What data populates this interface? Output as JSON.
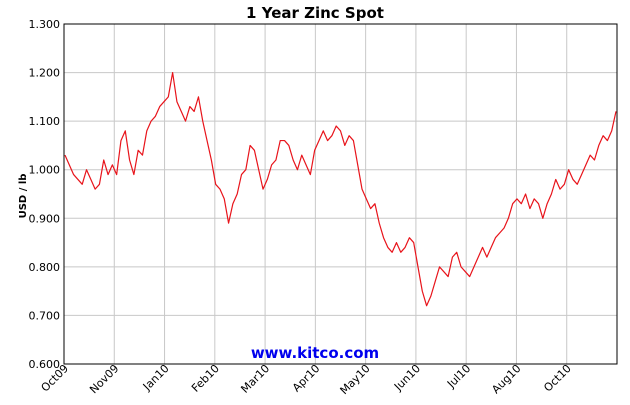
{
  "chart_data": {
    "type": "line",
    "title": "1 Year Zinc Spot",
    "xlabel": "",
    "ylabel": "USD / lb",
    "ylim": [
      0.6,
      1.3
    ],
    "y_ticks": [
      "0.600",
      "0.700",
      "0.800",
      "0.900",
      "1.000",
      "1.100",
      "1.200",
      "1.300"
    ],
    "x_ticks": [
      "Oct09",
      "Nov09",
      "Jan10",
      "Feb10",
      "Mar10",
      "Apr10",
      "May10",
      "Jun10",
      "Jul10",
      "Aug10",
      "Oct10"
    ],
    "grid": true,
    "line_color": "#e8141b",
    "watermark": "www.kitco.com",
    "series": [
      {
        "values": [
          1.03,
          1.01,
          0.99,
          0.98,
          0.97,
          1.0,
          0.98,
          0.96,
          0.97,
          1.02,
          0.99,
          1.01,
          0.99,
          1.06,
          1.08,
          1.02,
          0.99,
          1.04,
          1.03,
          1.08,
          1.1,
          1.11,
          1.13,
          1.14,
          1.15,
          1.2,
          1.14,
          1.12,
          1.1,
          1.13,
          1.12,
          1.15,
          1.1,
          1.06,
          1.02,
          0.97,
          0.96,
          0.94,
          0.89,
          0.93,
          0.95,
          0.99,
          1.0,
          1.05,
          1.04,
          1.0,
          0.96,
          0.98,
          1.01,
          1.02,
          1.06,
          1.06,
          1.05,
          1.02,
          1.0,
          1.03,
          1.01,
          0.99,
          1.04,
          1.06,
          1.08,
          1.06,
          1.07,
          1.09,
          1.08,
          1.05,
          1.07,
          1.06,
          1.01,
          0.96,
          0.94,
          0.92,
          0.93,
          0.89,
          0.86,
          0.84,
          0.83,
          0.85,
          0.83,
          0.84,
          0.86,
          0.85,
          0.8,
          0.75,
          0.72,
          0.74,
          0.77,
          0.8,
          0.79,
          0.78,
          0.82,
          0.83,
          0.8,
          0.79,
          0.78,
          0.8,
          0.82,
          0.84,
          0.82,
          0.84,
          0.86,
          0.87,
          0.88,
          0.9,
          0.93,
          0.94,
          0.93,
          0.95,
          0.92,
          0.94,
          0.93,
          0.9,
          0.93,
          0.95,
          0.98,
          0.96,
          0.97,
          1.0,
          0.98,
          0.97,
          0.99,
          1.01,
          1.03,
          1.02,
          1.05,
          1.07,
          1.06,
          1.08,
          1.12
        ]
      }
    ]
  }
}
